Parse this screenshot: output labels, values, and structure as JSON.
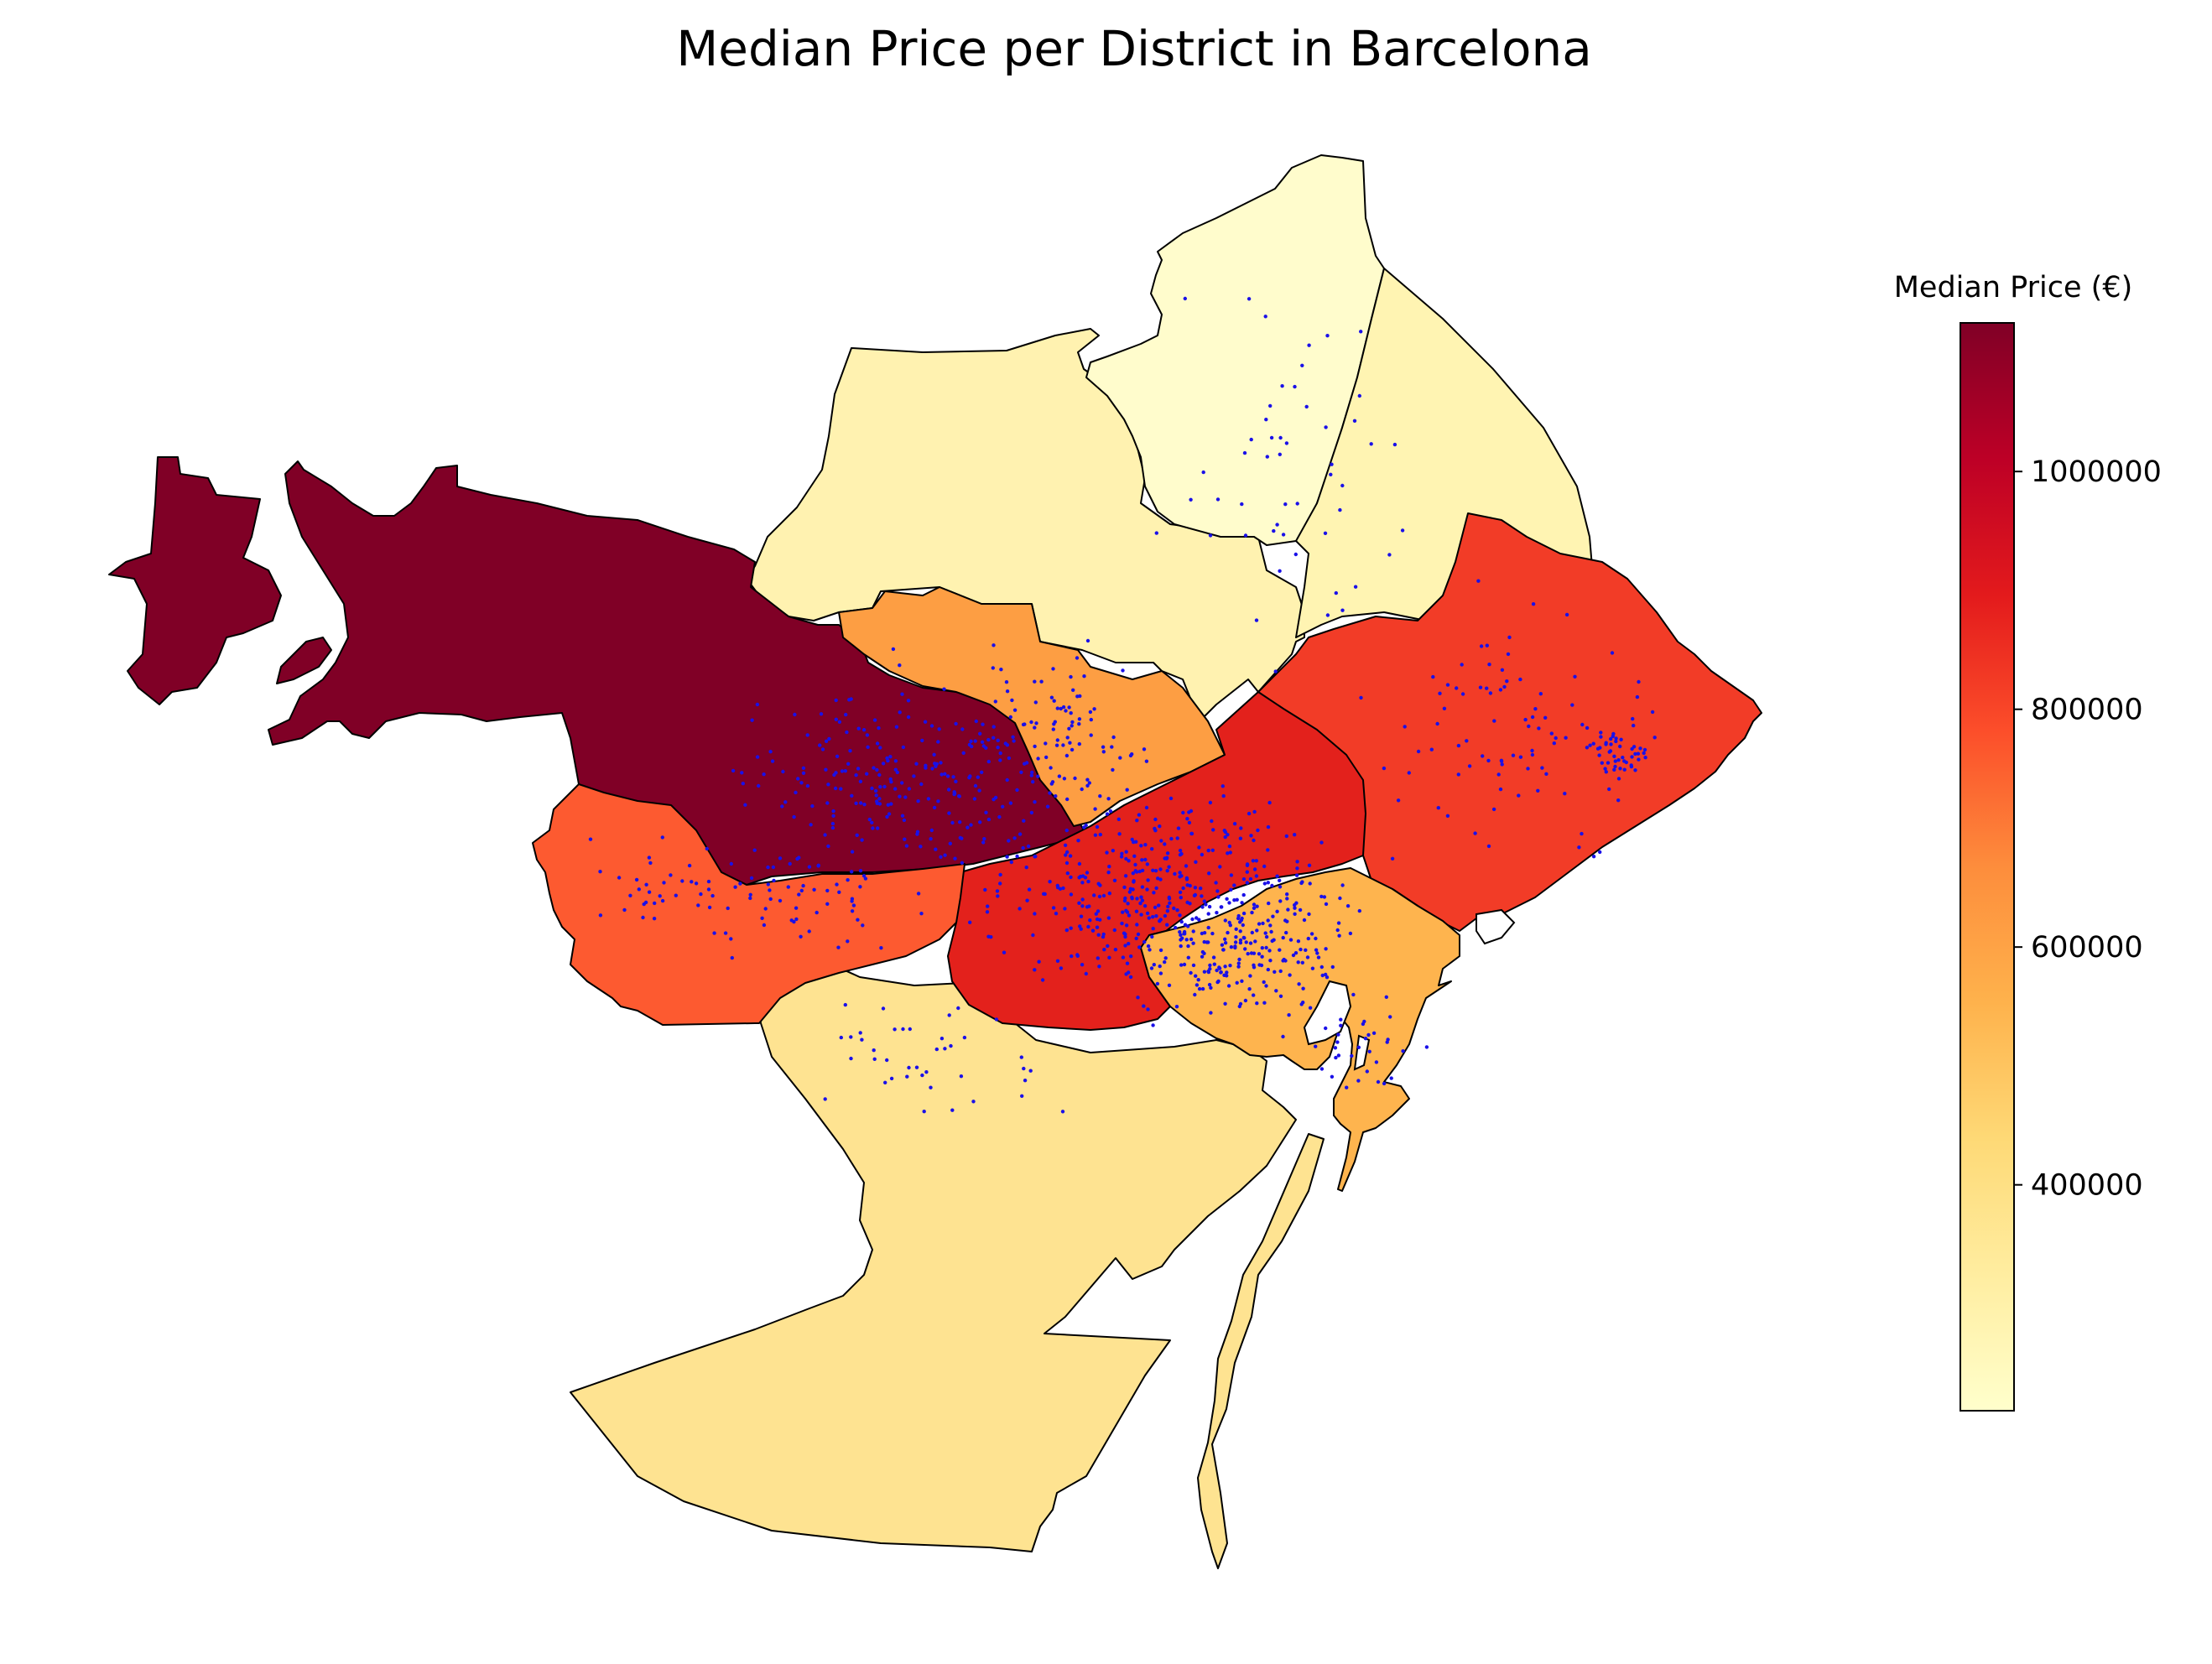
{
  "map": {
    "title": "Median Price per District in Barcelona",
    "legend_title": "Median Price (€)",
    "color_scale": {
      "name": "YlOrRd",
      "min": 210000,
      "max": 1125000,
      "stops": [
        "#ffffcc",
        "#ffeda0",
        "#fed976",
        "#feb24c",
        "#fd8d3c",
        "#fc4e2a",
        "#e31a1c",
        "#bd0026",
        "#800026"
      ]
    },
    "ticks": [
      {
        "value": 400000,
        "label": "400000"
      },
      {
        "value": 600000,
        "label": "600000"
      },
      {
        "value": 800000,
        "label": "800000"
      },
      {
        "value": 1000000,
        "label": "1000000"
      }
    ],
    "districts": [
      {
        "id": "d-nw",
        "median": 1125000,
        "color": "#800026"
      },
      {
        "id": "d-w",
        "median": 770000,
        "color": "#fd5a30"
      },
      {
        "id": "d-n",
        "median": 300000,
        "color": "#fff2b0"
      },
      {
        "id": "d-ne-top",
        "median": 215000,
        "color": "#fffccc"
      },
      {
        "id": "d-ne",
        "median": 290000,
        "color": "#fff4b2"
      },
      {
        "id": "d-c",
        "median": 620000,
        "color": "#fd9e43"
      },
      {
        "id": "d-e",
        "median": 830000,
        "color": "#f23c27"
      },
      {
        "id": "d-ctr",
        "median": 905000,
        "color": "#e3211c"
      },
      {
        "id": "d-old",
        "median": 560000,
        "color": "#feb44e"
      },
      {
        "id": "d-s",
        "median": 360000,
        "color": "#fee391"
      }
    ],
    "point_color": "#1a10e8"
  }
}
